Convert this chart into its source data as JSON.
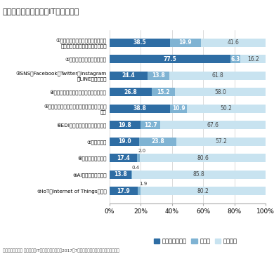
{
  "title": "（図表７）中小企業のITの活用状況",
  "categories": [
    "①スマートフォン、タブレット端末\nの活用（社内システムとの連携）",
    "②自社のホームページの開設",
    "③SNS（Facebook、Twitter、Instagram\n、LINE等）の導入",
    "④ホームページ上での販売・注文の受付",
    "⑤インターネット上での仕入・物品購入等の\n発注",
    "⑥EDI（電子データ交換）の導入",
    "⑦クラウド化",
    "⑧ビッグデータ活用",
    "⑨AI（人工知能）活用",
    "⑩IoT（Internet of Things）活用"
  ],
  "introduced": [
    38.5,
    77.5,
    24.4,
    26.8,
    38.8,
    19.8,
    19.0,
    17.4,
    13.8,
    17.9
  ],
  "considering": [
    19.9,
    6.3,
    13.8,
    15.2,
    10.9,
    12.7,
    23.8,
    2.0,
    0.4,
    1.9
  ],
  "not_planned": [
    41.6,
    16.2,
    61.8,
    58.0,
    50.2,
    67.6,
    57.2,
    80.6,
    85.8,
    80.2
  ],
  "color_introduced": "#2E6DA4",
  "color_considering": "#7FB3D3",
  "color_not_planned": "#C8E3F0",
  "legend_labels": [
    "導入済・開設済",
    "検討中",
    "予定なし"
  ],
  "footnote": "（資料）商工中金 中小企業のIT活用に関する調査（2017年7月調査）よりニッセイ基礎研究所作成",
  "xlim": [
    0,
    100
  ],
  "small_threshold": 3.0
}
